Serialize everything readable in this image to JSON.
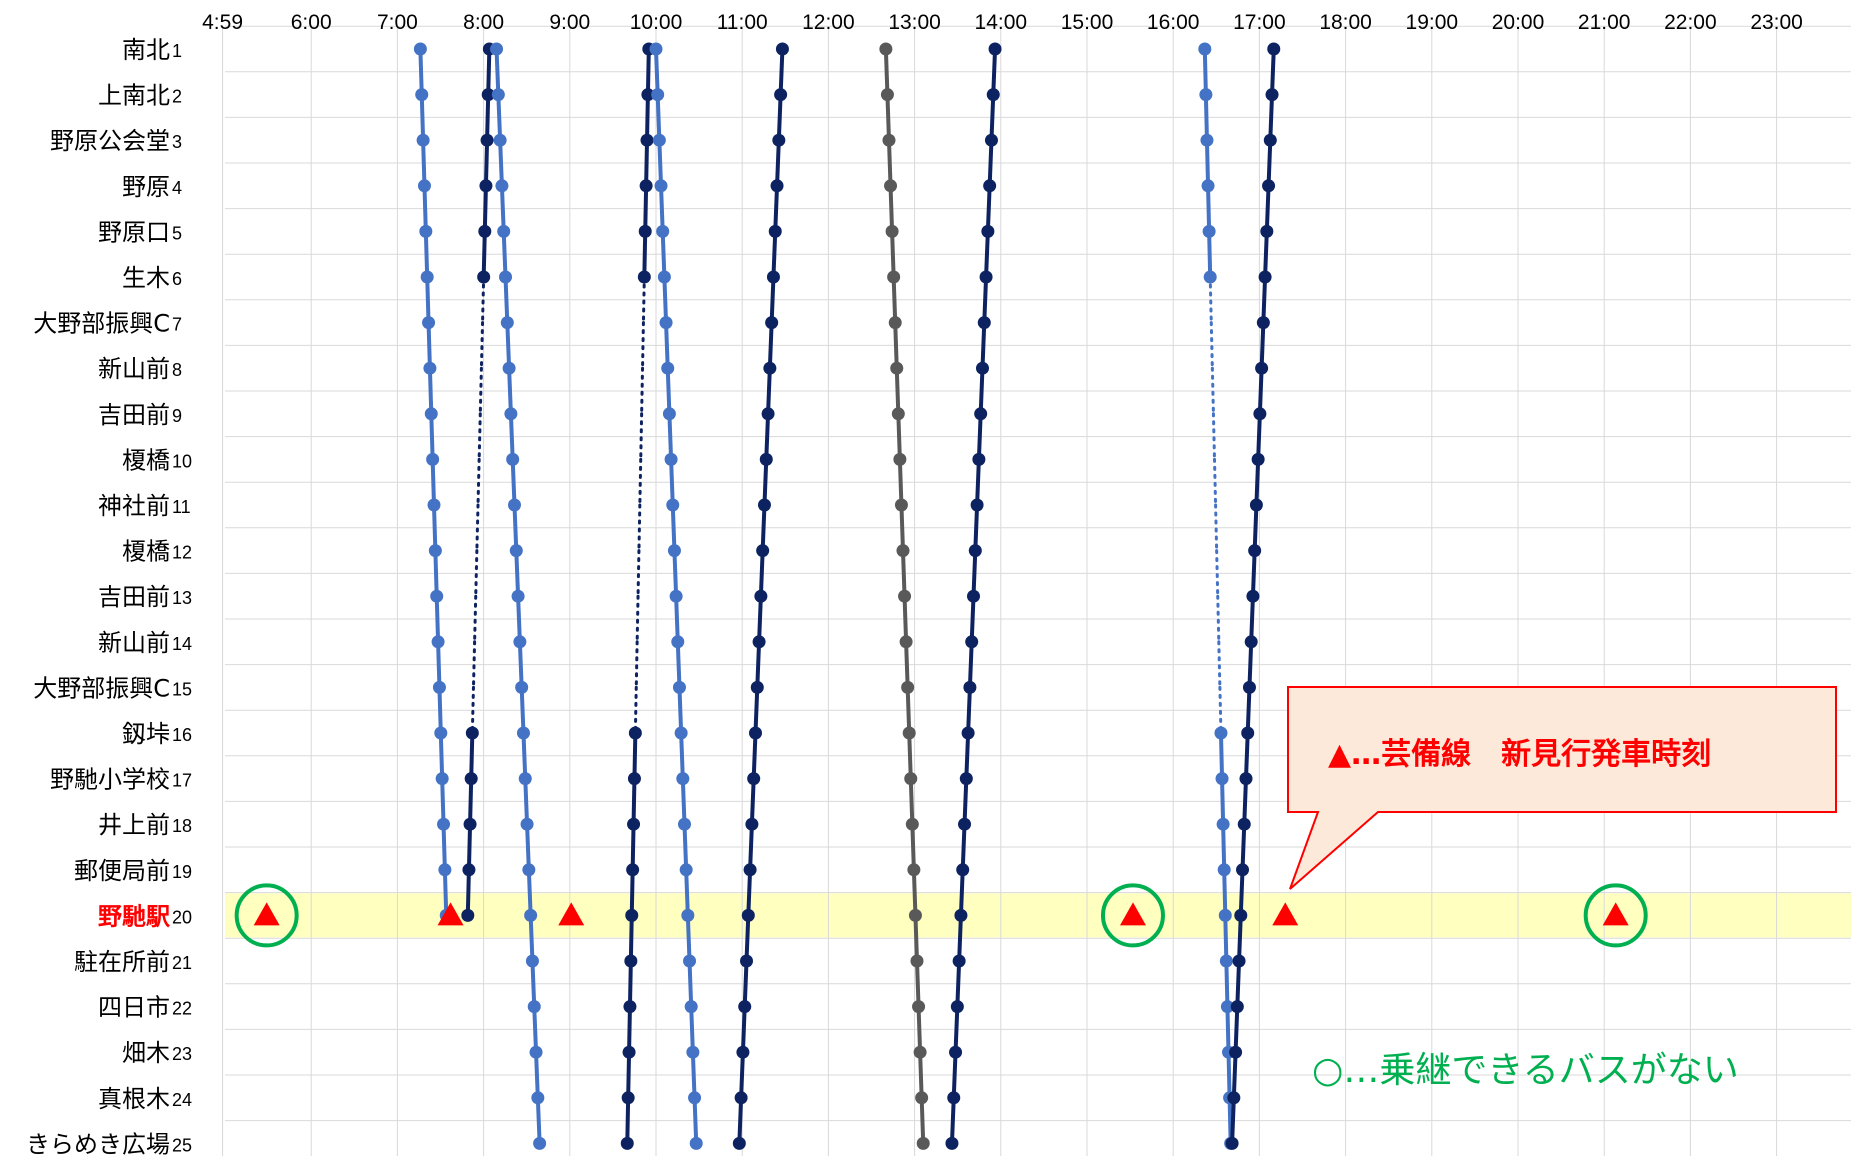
{
  "chart_data": {
    "type": "line",
    "orientation": "time-horizontal, stops-vertical",
    "x_axis": {
      "range": [
        "4:59",
        "24:00"
      ],
      "ticks": [
        "4:59",
        "6:00",
        "7:00",
        "8:00",
        "9:00",
        "10:00",
        "11:00",
        "12:00",
        "13:00",
        "14:00",
        "15:00",
        "16:00",
        "17:00",
        "18:00",
        "19:00",
        "20:00",
        "21:00",
        "22:00",
        "23:00"
      ],
      "grid": true
    },
    "stops": [
      {
        "num": 1,
        "name": "南北"
      },
      {
        "num": 2,
        "name": "上南北"
      },
      {
        "num": 3,
        "name": "野原公会堂"
      },
      {
        "num": 4,
        "name": "野原"
      },
      {
        "num": 5,
        "name": "野原口"
      },
      {
        "num": 6,
        "name": "生木"
      },
      {
        "num": 7,
        "name": "大野部振興C"
      },
      {
        "num": 8,
        "name": "新山前"
      },
      {
        "num": 9,
        "name": "吉田前"
      },
      {
        "num": 10,
        "name": "榎橋"
      },
      {
        "num": 11,
        "name": "神社前"
      },
      {
        "num": 12,
        "name": "榎橋"
      },
      {
        "num": 13,
        "name": "吉田前"
      },
      {
        "num": 14,
        "name": "新山前"
      },
      {
        "num": 15,
        "name": "大野部振興C"
      },
      {
        "num": 16,
        "name": "釼垰"
      },
      {
        "num": 17,
        "name": "野馳小学校"
      },
      {
        "num": 18,
        "name": "井上前"
      },
      {
        "num": 19,
        "name": "郵便局前"
      },
      {
        "num": 20,
        "name": "野馳駅",
        "highlight": true
      },
      {
        "num": 21,
        "name": "駐在所前"
      },
      {
        "num": 22,
        "name": "四日市"
      },
      {
        "num": 23,
        "name": "畑木"
      },
      {
        "num": 24,
        "name": "真根木"
      },
      {
        "num": 25,
        "name": "きらめき広場"
      }
    ],
    "series": [
      {
        "color": "#4472c4",
        "from_stop": 1,
        "start": "7:16",
        "end": "7:34",
        "to_stop": 20
      },
      {
        "color": "#0d2261",
        "from_stop": 1,
        "start": "8:04",
        "end": "7:49",
        "to_stop": 20,
        "dotted_between": [
          6,
          16
        ]
      },
      {
        "color": "#4472c4",
        "from_stop": 1,
        "start": "8:09",
        "end": "8:39",
        "to_stop": 25
      },
      {
        "color": "#0d2261",
        "from_stop": 1,
        "start": "9:55",
        "end": "9:40",
        "to_stop": 25,
        "dotted_between": [
          6,
          16
        ]
      },
      {
        "color": "#4472c4",
        "from_stop": 1,
        "start": "10:00",
        "end": "10:28",
        "to_stop": 25
      },
      {
        "color": "#0d2261",
        "from_stop": 1,
        "start": "11:28",
        "end": "10:58",
        "to_stop": 25
      },
      {
        "color": "#595959",
        "from_stop": 1,
        "start": "12:40",
        "end": "13:06",
        "to_stop": 25
      },
      {
        "color": "#0d2261",
        "from_stop": 1,
        "start": "13:56",
        "end": "13:26",
        "to_stop": 25
      },
      {
        "color": "#4472c4",
        "from_stop": 1,
        "start": "16:22",
        "end": "16:40",
        "to_stop": 25,
        "dotted_between": [
          6,
          16
        ]
      },
      {
        "color": "#0d2261",
        "from_stop": 1,
        "start": "17:10",
        "end": "16:41",
        "to_stop": 25
      }
    ],
    "markers": {
      "triangles_at_stop": 20,
      "triangle_times": [
        "5:29",
        "7:37",
        "9:01",
        "15:32",
        "17:18",
        "21:08"
      ],
      "circled_times": [
        "5:29",
        "15:32",
        "21:08"
      ]
    },
    "annotations": {
      "callout": "▲…芸備線　新見行発車時刻",
      "legend_circle": "○…乗継できるバスがない"
    }
  },
  "colors": {
    "highlight_band": "#ffffc0",
    "triangle": "#ff0000",
    "circle": "#00b050",
    "callout_fill": "#fde9d9",
    "callout_border": "#ff0000",
    "grid": "#d9d9d9"
  }
}
